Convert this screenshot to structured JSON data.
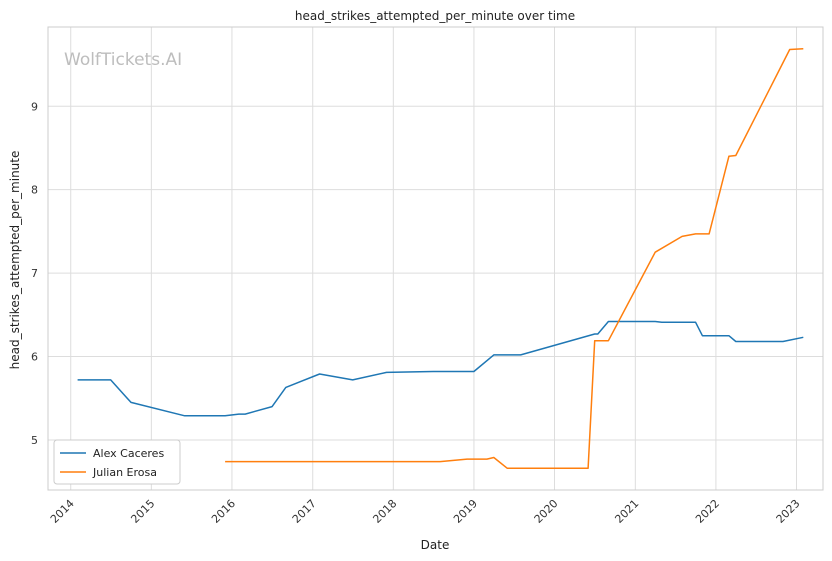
{
  "chart_data": {
    "type": "line",
    "title": "head_strikes_attempted_per_minute over time",
    "xlabel": "Date",
    "ylabel": "head_strikes_attempted_per_minute",
    "watermark": "WolfTickets.AI",
    "x_ticks": [
      "2014",
      "2015",
      "2016",
      "2017",
      "2018",
      "2019",
      "2020",
      "2021",
      "2022",
      "2023"
    ],
    "y_ticks": [
      "5",
      "6",
      "7",
      "8",
      "9"
    ],
    "xlim": [
      "2013-09-20",
      "2023-05-01"
    ],
    "ylim": [
      4.4,
      9.95
    ],
    "grid": true,
    "legend_position": "lower left",
    "series": [
      {
        "name": "Alex Caceres",
        "color": "#1f77b4",
        "points": [
          [
            "2014-02-01",
            5.72
          ],
          [
            "2014-07-01",
            5.72
          ],
          [
            "2014-10-01",
            5.45
          ],
          [
            "2015-06-01",
            5.29
          ],
          [
            "2015-12-01",
            5.29
          ],
          [
            "2016-02-01",
            5.31
          ],
          [
            "2016-03-01",
            5.31
          ],
          [
            "2016-07-01",
            5.4
          ],
          [
            "2016-09-01",
            5.63
          ],
          [
            "2017-02-01",
            5.79
          ],
          [
            "2017-07-01",
            5.72
          ],
          [
            "2017-12-01",
            5.81
          ],
          [
            "2018-07-01",
            5.82
          ],
          [
            "2019-01-01",
            5.82
          ],
          [
            "2019-04-01",
            6.02
          ],
          [
            "2019-08-01",
            6.02
          ],
          [
            "2020-07-01",
            6.27
          ],
          [
            "2020-07-15",
            6.27
          ],
          [
            "2020-09-01",
            6.42
          ],
          [
            "2021-04-01",
            6.42
          ],
          [
            "2021-05-01",
            6.41
          ],
          [
            "2021-10-01",
            6.41
          ],
          [
            "2021-11-01",
            6.25
          ],
          [
            "2022-03-01",
            6.25
          ],
          [
            "2022-04-01",
            6.18
          ],
          [
            "2022-11-01",
            6.18
          ],
          [
            "2023-02-01",
            6.23
          ]
        ]
      },
      {
        "name": "Julian Erosa",
        "color": "#ff7f0e",
        "points": [
          [
            "2015-12-01",
            4.74
          ],
          [
            "2018-08-01",
            4.74
          ],
          [
            "2018-12-01",
            4.77
          ],
          [
            "2019-03-01",
            4.77
          ],
          [
            "2019-04-01",
            4.79
          ],
          [
            "2019-06-01",
            4.66
          ],
          [
            "2020-06-01",
            4.66
          ],
          [
            "2020-07-01",
            6.19
          ],
          [
            "2020-09-01",
            6.19
          ],
          [
            "2021-04-01",
            7.25
          ],
          [
            "2021-08-01",
            7.44
          ],
          [
            "2021-10-01",
            7.47
          ],
          [
            "2021-12-01",
            7.47
          ],
          [
            "2022-03-01",
            8.4
          ],
          [
            "2022-04-01",
            8.41
          ],
          [
            "2022-12-01",
            9.68
          ],
          [
            "2023-02-01",
            9.69
          ]
        ]
      }
    ]
  }
}
